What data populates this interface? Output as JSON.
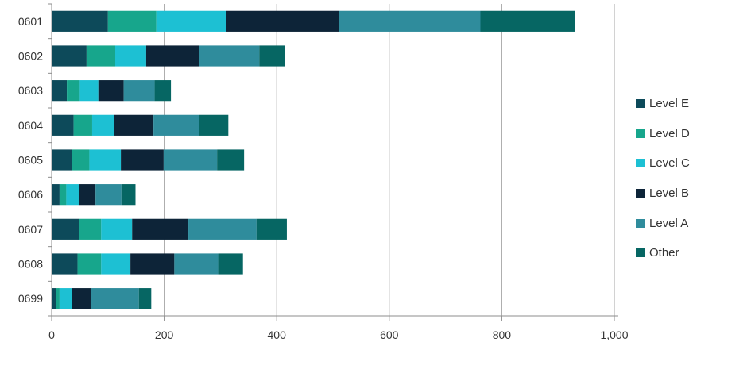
{
  "chart_data": {
    "type": "bar",
    "orientation": "horizontal",
    "stacked": true,
    "categories": [
      "0601",
      "0602",
      "0603",
      "0604",
      "0605",
      "0606",
      "0607",
      "0608",
      "0699"
    ],
    "series": [
      {
        "name": "Level E",
        "color": "#0d4a5a",
        "values": [
          100,
          62,
          27,
          39,
          36,
          14,
          49,
          46,
          8
        ]
      },
      {
        "name": "Level D",
        "color": "#17a68c",
        "values": [
          86,
          51,
          23,
          33,
          31,
          12,
          39,
          42,
          6
        ]
      },
      {
        "name": "Level C",
        "color": "#1dc0d3",
        "values": [
          124,
          55,
          33,
          39,
          56,
          22,
          55,
          52,
          22
        ]
      },
      {
        "name": "Level B",
        "color": "#0d2438",
        "values": [
          200,
          94,
          45,
          70,
          76,
          30,
          100,
          78,
          34
        ]
      },
      {
        "name": "Level A",
        "color": "#2f8c9c",
        "values": [
          252,
          107,
          55,
          81,
          95,
          46,
          121,
          78,
          85
        ]
      },
      {
        "name": "Other",
        "color": "#066663",
        "values": [
          168,
          46,
          29,
          52,
          48,
          25,
          54,
          44,
          22
        ]
      }
    ],
    "xlim": [
      0,
      1000
    ],
    "xticks": [
      0,
      200,
      400,
      600,
      800,
      1000
    ],
    "xtick_labels": [
      "0",
      "200",
      "400",
      "600",
      "800",
      "1,000"
    ],
    "grid": "vertical",
    "legend_position": "right"
  }
}
